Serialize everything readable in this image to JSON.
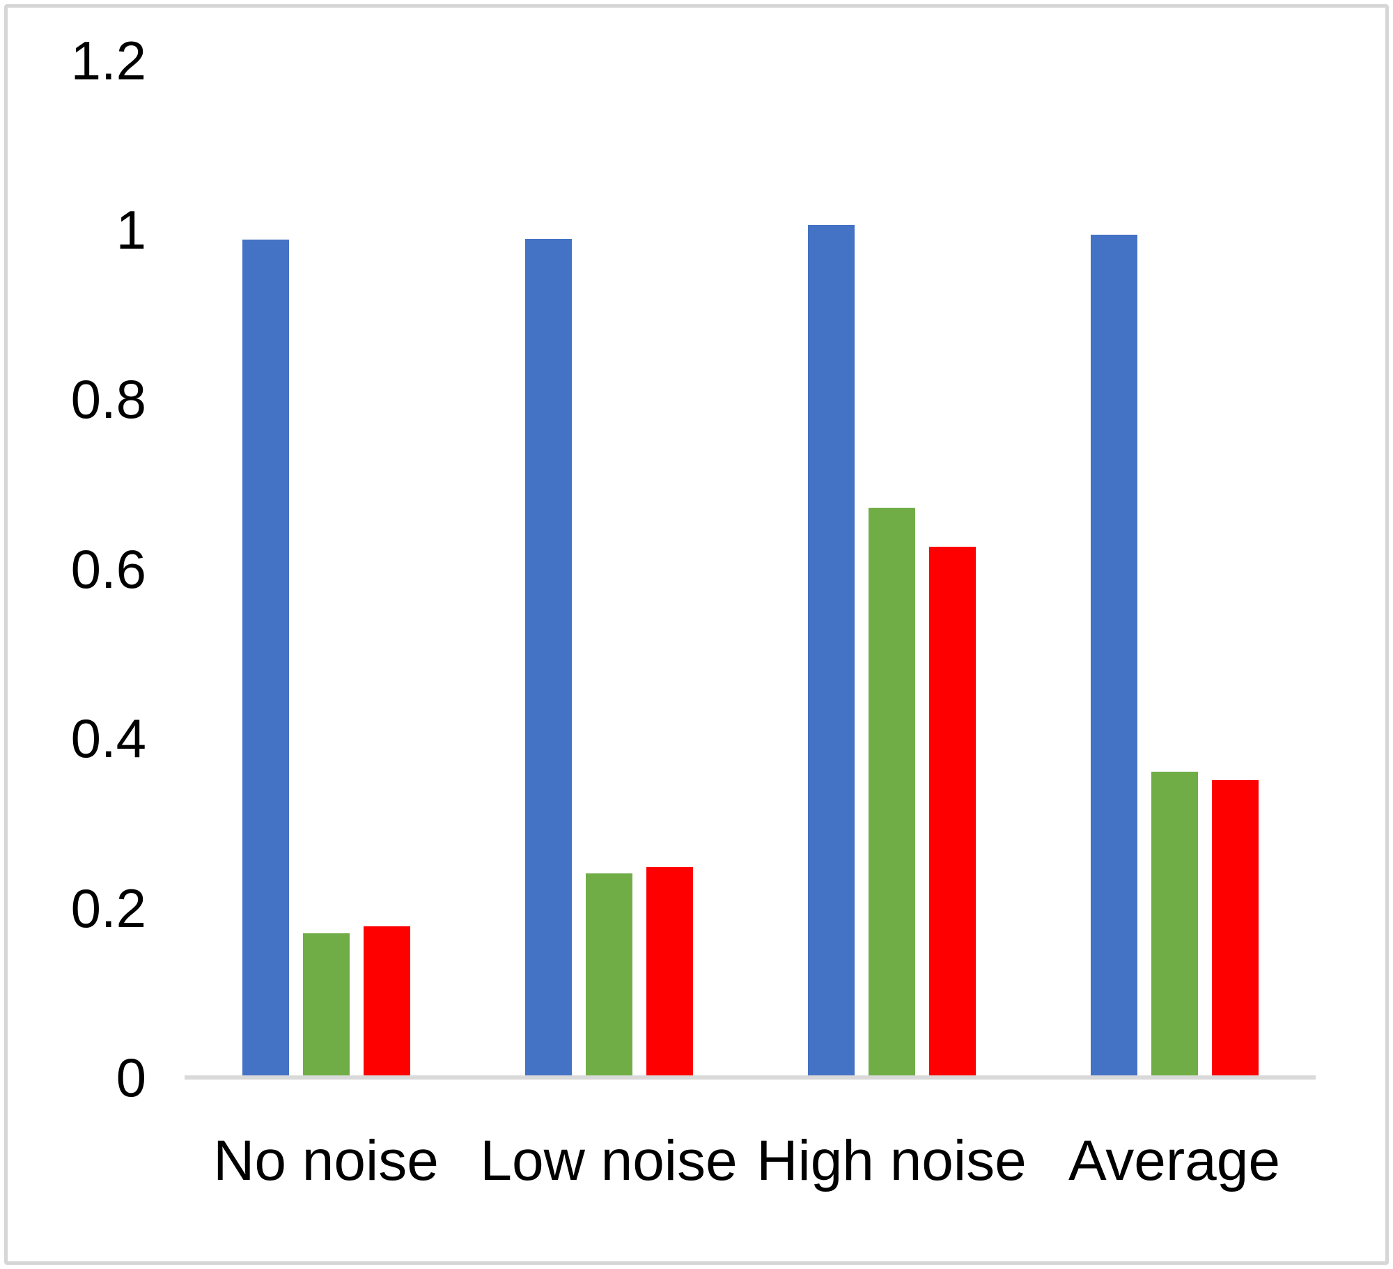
{
  "chart_data": {
    "type": "bar",
    "title": "",
    "xlabel": "",
    "ylabel": "",
    "categories": [
      "No noise",
      "Low noise",
      "High noise",
      "Average"
    ],
    "series": [
      {
        "name": "blue",
        "color": "#4472C4",
        "values": [
          0.986,
          0.987,
          1.003,
          0.992
        ]
      },
      {
        "name": "green",
        "color": "#70AD47",
        "values": [
          0.168,
          0.238,
          0.67,
          0.358
        ]
      },
      {
        "name": "red",
        "color": "#FF0000",
        "values": [
          0.176,
          0.246,
          0.624,
          0.348
        ]
      }
    ],
    "ylim": [
      0,
      1.2
    ],
    "yticks": [
      0,
      0.2,
      0.4,
      0.6,
      0.8,
      1,
      1.2
    ],
    "ytick_labels": [
      "0",
      "0.2",
      "0.4",
      "0.6",
      "0.8",
      "1",
      "1.2"
    ],
    "grid": false,
    "legend": false,
    "axis_color": "#D9D9D9",
    "frame_border_color": "#D6D6D6",
    "text_color": "#000000"
  }
}
